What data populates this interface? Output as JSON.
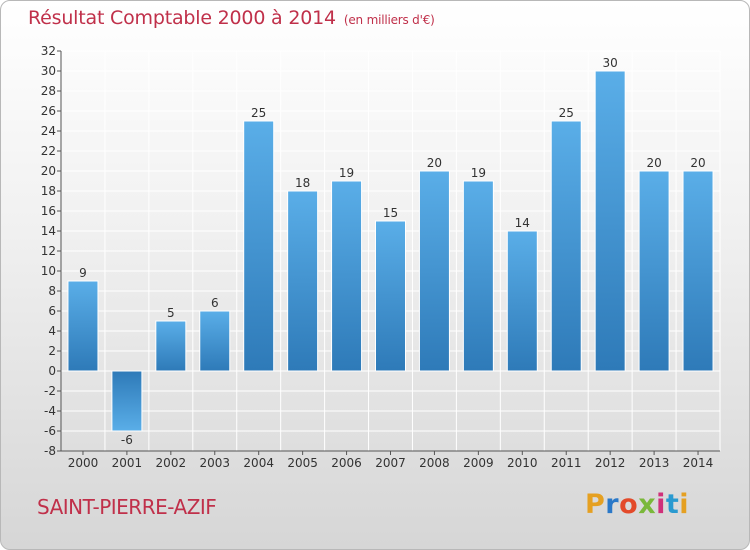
{
  "header": {
    "title": "Résultat Comptable 2000 à 2014",
    "subtitle": "(en milliers d'€)"
  },
  "footer": {
    "commune": "SAINT-PIERRE-AZIF",
    "logo": "Proxiti",
    "logo_colors": [
      "#e5a021",
      "#2a78c8",
      "#e34a2a",
      "#7ab83a",
      "#d0307a",
      "#2a9ad0",
      "#e5a021"
    ]
  },
  "colors": {
    "bar_top": "#5aaee8",
    "bar_bottom": "#2e7ab8",
    "grid": "#ffffff",
    "text_accent": "#c0304a"
  },
  "chart_data": {
    "type": "bar",
    "title": "Résultat Comptable 2000 à 2014",
    "subtitle": "(en milliers d'€)",
    "categories": [
      "2000",
      "2001",
      "2002",
      "2003",
      "2004",
      "2005",
      "2006",
      "2007",
      "2008",
      "2009",
      "2010",
      "2011",
      "2012",
      "2013",
      "2014"
    ],
    "values": [
      9,
      -6,
      5,
      6,
      25,
      18,
      19,
      15,
      20,
      19,
      14,
      25,
      30,
      20,
      20
    ],
    "ylim": [
      -8,
      32
    ],
    "yticks": [
      -8,
      -6,
      -4,
      -2,
      0,
      2,
      4,
      6,
      8,
      10,
      12,
      14,
      16,
      18,
      20,
      22,
      24,
      26,
      28,
      30,
      32
    ],
    "grid": true,
    "data_labels": true
  }
}
